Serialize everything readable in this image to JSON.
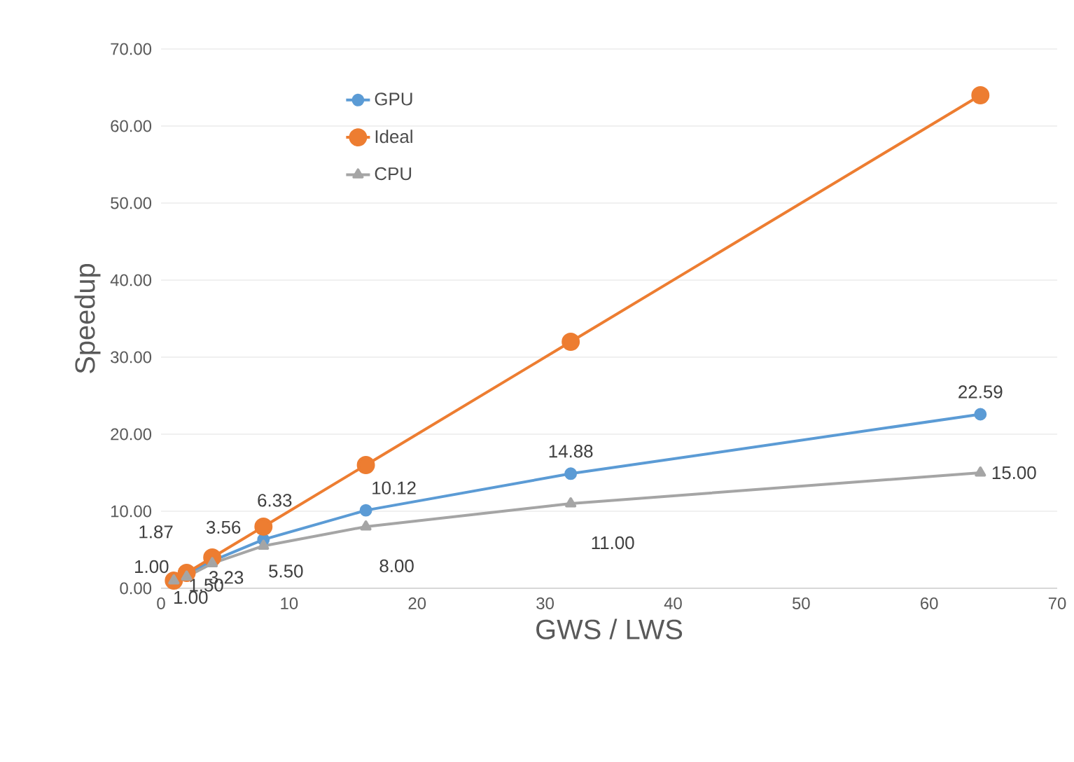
{
  "chart_data": {
    "type": "line",
    "xlabel": "GWS / LWS",
    "ylabel": "Speedup",
    "x": [
      1,
      2,
      4,
      8,
      16,
      32,
      64
    ],
    "series": [
      {
        "name": "GPU",
        "color": "#5b9bd5",
        "marker": "circle",
        "values": [
          1.0,
          1.87,
          3.56,
          6.33,
          10.12,
          14.88,
          22.59
        ],
        "value_labels": [
          "1.00",
          "1.87",
          "3.56",
          "6.33",
          "10.12",
          "14.88",
          "22.59"
        ]
      },
      {
        "name": "Ideal",
        "color": "#ed7d31",
        "marker": "circle",
        "values": [
          1,
          2,
          4,
          8,
          16,
          32,
          64
        ]
      },
      {
        "name": "CPU",
        "color": "#a5a5a5",
        "marker": "triangle",
        "values": [
          1.0,
          1.5,
          3.23,
          5.5,
          8.0,
          11.0,
          15.0
        ],
        "value_labels": [
          "1.00",
          "1.50",
          "3.23",
          "5.50",
          "8.00",
          "11.00",
          "15.00"
        ]
      }
    ],
    "xlim": [
      0,
      70
    ],
    "xticks": [
      0,
      10,
      20,
      30,
      40,
      50,
      60,
      70
    ],
    "ylim": [
      0,
      70
    ],
    "yticks": [
      {
        "value": 0,
        "label": "0.00"
      },
      {
        "value": 10,
        "label": "10.00"
      },
      {
        "value": 20,
        "label": "20.00"
      },
      {
        "value": 30,
        "label": "30.00"
      },
      {
        "value": 40,
        "label": "40.00"
      },
      {
        "value": 50,
        "label": "50.00"
      },
      {
        "value": 60,
        "label": "60.00"
      },
      {
        "value": 70,
        "label": "70.00"
      }
    ],
    "grid": "y",
    "legend": "top left",
    "line_style": "solid"
  }
}
